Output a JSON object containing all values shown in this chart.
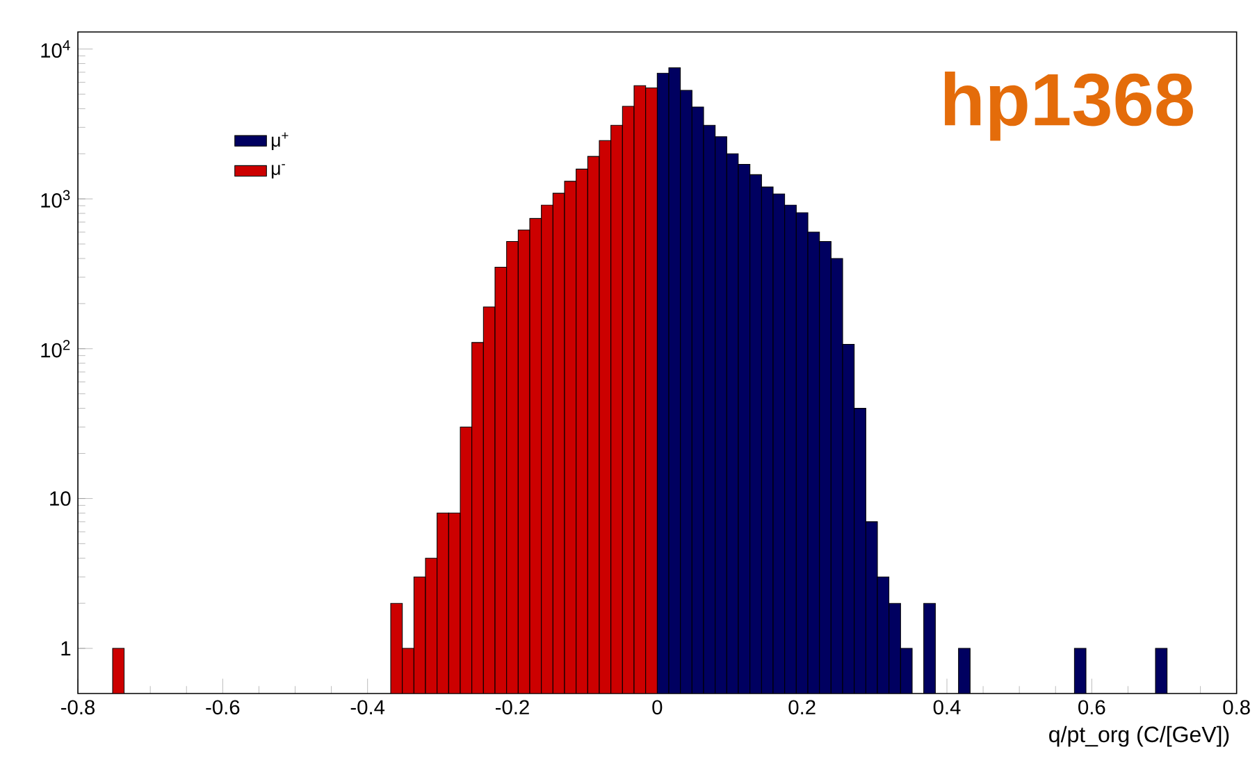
{
  "chart_data": {
    "type": "histogram",
    "xlabel": "q/pt_org (C/[GeV])",
    "annotations": [
      "hp1368"
    ],
    "bins": [
      -0.8,
      -0.784,
      -0.768,
      -0.752,
      -0.736,
      -0.72,
      -0.704,
      -0.688,
      -0.672,
      -0.656,
      -0.64,
      -0.624,
      -0.608,
      -0.592,
      -0.576,
      -0.56,
      -0.544,
      -0.528,
      -0.512,
      -0.496,
      -0.48,
      -0.464,
      -0.448,
      -0.432,
      -0.416,
      -0.4,
      -0.384,
      -0.368,
      -0.352,
      -0.336,
      -0.32,
      -0.304,
      -0.288,
      -0.272,
      -0.256,
      -0.24,
      -0.224,
      -0.208,
      -0.192,
      -0.176,
      -0.16,
      -0.144,
      -0.128,
      -0.112,
      -0.096,
      -0.08,
      -0.064,
      -0.048,
      -0.032,
      -0.016,
      0,
      0.016,
      0.032,
      0.048,
      0.064,
      0.08,
      0.096,
      0.112,
      0.128,
      0.144,
      0.16,
      0.176,
      0.192,
      0.208,
      0.224,
      0.24,
      0.256,
      0.272,
      0.288,
      0.304,
      0.32,
      0.336,
      0.352,
      0.368,
      0.384,
      0.4,
      0.416,
      0.432,
      0.448,
      0.464,
      0.48,
      0.496,
      0.512,
      0.528,
      0.544,
      0.56,
      0.576,
      0.592,
      0.608,
      0.624,
      0.64,
      0.656,
      0.672,
      0.688,
      0.704,
      0.72,
      0.736,
      0.752,
      0.768,
      0.784,
      0.8
    ],
    "series": [
      {
        "name": "μ$^{+}$",
        "color": "#000060",
        "values": [
          null,
          null,
          null,
          null,
          null,
          null,
          null,
          null,
          null,
          null,
          null,
          null,
          null,
          null,
          null,
          null,
          null,
          null,
          null,
          null,
          null,
          null,
          null,
          null,
          null,
          null,
          null,
          null,
          null,
          null,
          null,
          null,
          null,
          null,
          null,
          null,
          null,
          null,
          null,
          null,
          null,
          null,
          null,
          null,
          null,
          null,
          null,
          null,
          null,
          null,
          6900,
          7500,
          5300,
          4100,
          3100,
          2600,
          2000,
          1700,
          1450,
          1200,
          1080,
          910,
          810,
          600,
          520,
          400,
          107,
          40,
          7,
          3,
          2,
          1,
          null,
          2,
          null,
          null,
          1,
          null,
          null,
          null,
          null,
          null,
          null,
          null,
          null,
          null,
          1,
          null,
          null,
          null,
          null,
          null,
          null,
          1,
          null,
          null,
          null,
          null,
          null,
          null
        ]
      },
      {
        "name": "μ$^{-}$",
        "color": "#cc0000",
        "values": [
          null,
          null,
          null,
          1,
          null,
          null,
          null,
          null,
          null,
          null,
          null,
          null,
          null,
          null,
          null,
          null,
          null,
          null,
          null,
          null,
          null,
          null,
          null,
          null,
          null,
          null,
          null,
          2,
          1,
          3,
          4,
          8,
          8,
          30,
          110,
          190,
          350,
          520,
          620,
          740,
          910,
          1090,
          1310,
          1580,
          1920,
          2450,
          3100,
          4150,
          5700,
          5500,
          null,
          null,
          null,
          null,
          null,
          null,
          null,
          null,
          null,
          null,
          null,
          null,
          null,
          null,
          null,
          null,
          null,
          null,
          null,
          null,
          null,
          null,
          null,
          null,
          null,
          null,
          null,
          null,
          null,
          null,
          null,
          null,
          null,
          null,
          null,
          null,
          null,
          null,
          null,
          null,
          null,
          null,
          null,
          null,
          null,
          null,
          null,
          null,
          null,
          null
        ]
      }
    ],
    "xlim": [
      -0.8,
      0.8
    ],
    "xticks": [
      -0.8,
      -0.6,
      -0.4,
      -0.2,
      0,
      0.2,
      0.4,
      0.6,
      0.8
    ],
    "ylim": [
      0.5,
      13000
    ],
    "yticks": [
      1,
      10,
      {
        "value": 100,
        "label": "10$^{2}$"
      },
      {
        "value": 1000,
        "label": "10$^{3}$"
      },
      {
        "value": 10000,
        "label": "10$^{4}$"
      }
    ],
    "log": true,
    "grid": false,
    "legend": "top left"
  }
}
